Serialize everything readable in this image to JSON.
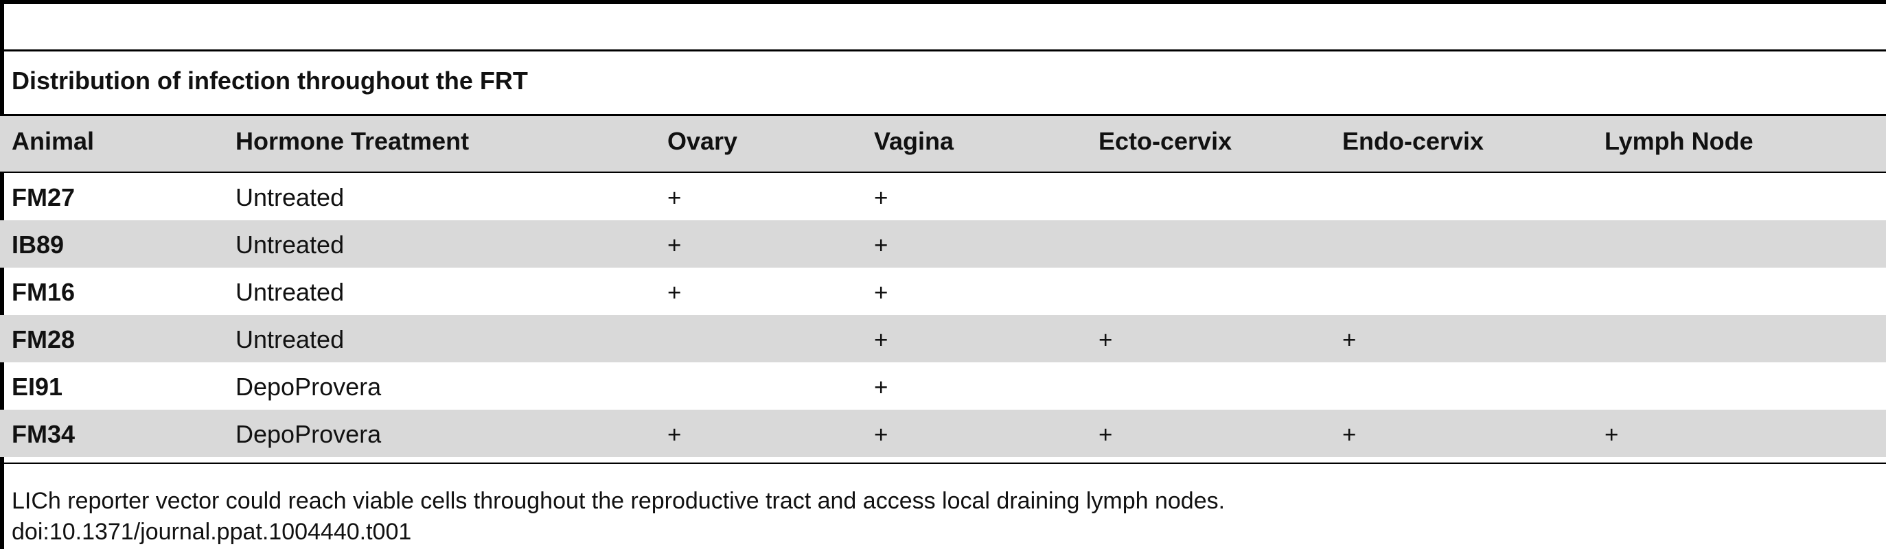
{
  "table": {
    "title": "Distribution of infection throughout the FRT",
    "columns": [
      "Animal",
      "Hormone Treatment",
      "Ovary",
      "Vagina",
      "Ecto-cervix",
      "Endo-cervix",
      "Lymph Node"
    ],
    "rows": [
      [
        "FM27",
        "Untreated",
        "+",
        "+",
        "",
        "",
        ""
      ],
      [
        "IB89",
        "Untreated",
        "+",
        "+",
        "",
        "",
        ""
      ],
      [
        "FM16",
        "Untreated",
        "+",
        "+",
        "",
        "",
        ""
      ],
      [
        "FM28",
        "Untreated",
        "",
        "+",
        "+",
        "+",
        ""
      ],
      [
        "EI91",
        "DepoProvera",
        "",
        "+",
        "",
        "",
        ""
      ],
      [
        "FM34",
        "DepoProvera",
        "+",
        "+",
        "+",
        "+",
        "+"
      ]
    ],
    "caption": "LICh reporter vector could reach viable cells throughout the reproductive tract and access local draining lymph nodes.",
    "doi": "doi:10.1371/journal.ppat.1004440.t001"
  }
}
